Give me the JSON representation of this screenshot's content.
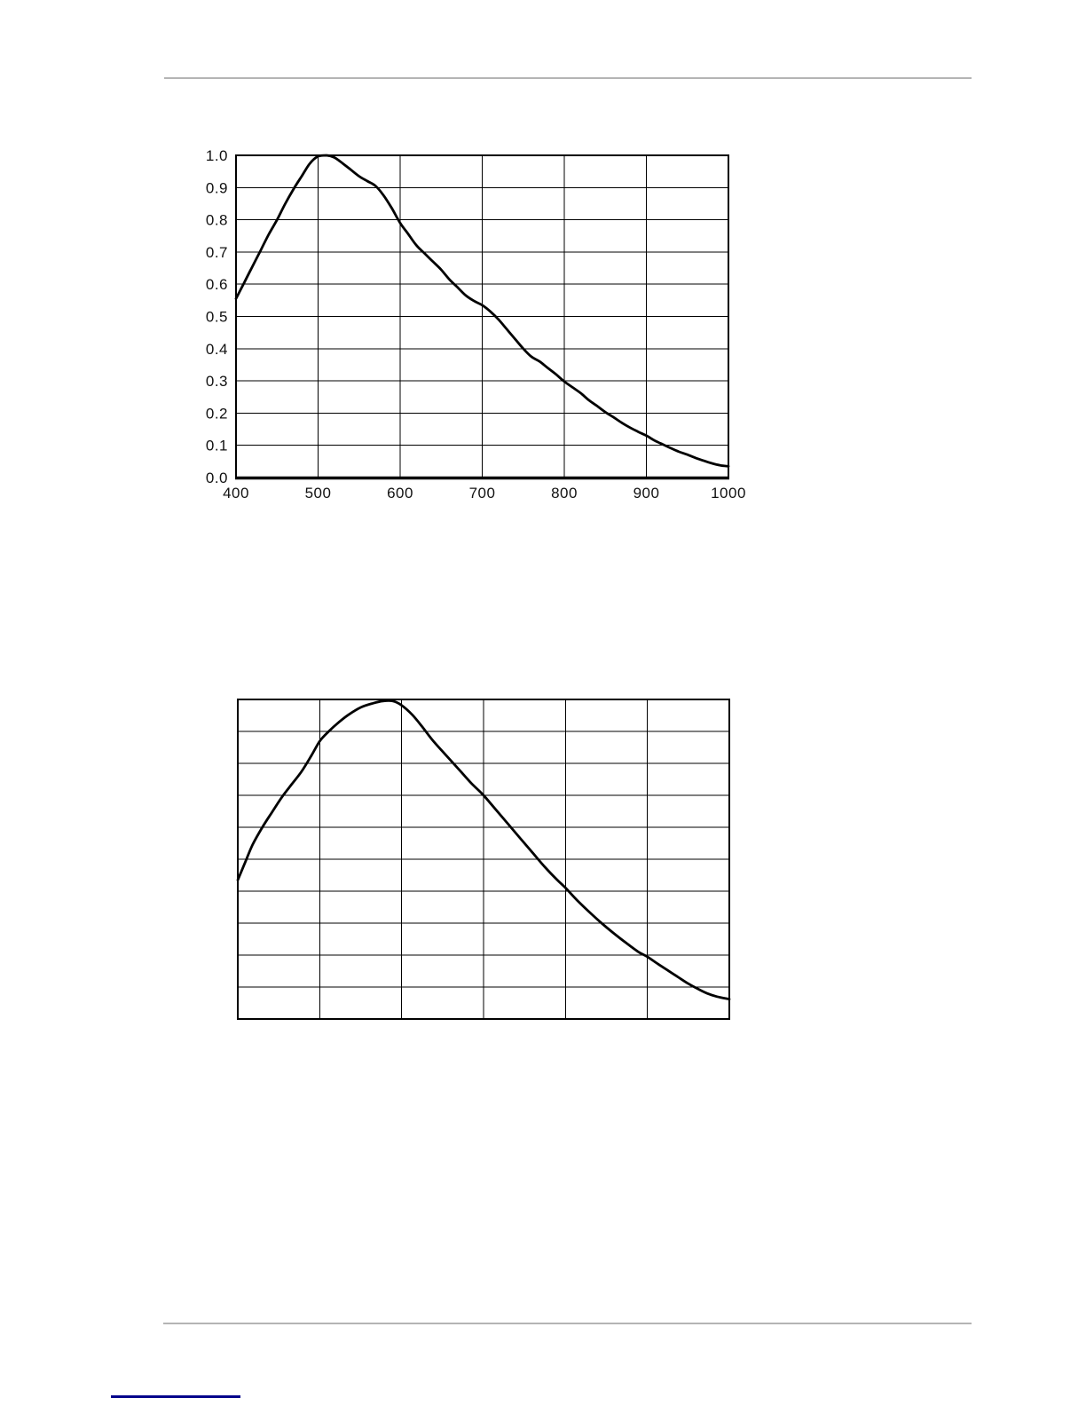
{
  "page": {
    "background": "#ffffff",
    "header_rule_color": "#b4b4b4",
    "footer_rule_color": "#b4b4b4",
    "link_line_color": "#00008b",
    "line_color": "#000000"
  },
  "chart_data": [
    {
      "type": "line",
      "title": "",
      "xlabel": "",
      "ylabel": "",
      "xlim": [
        400,
        1000
      ],
      "ylim": [
        0.0,
        1.0
      ],
      "x_ticks": [
        400,
        500,
        600,
        700,
        800,
        900,
        1000
      ],
      "x_tick_labels": [
        "400",
        "500",
        "600",
        "700",
        "800",
        "900",
        "1000"
      ],
      "y_ticks": [
        1.0,
        0.9,
        0.8,
        0.7,
        0.6,
        0.5,
        0.4,
        0.3,
        0.2,
        0.1,
        0.0
      ],
      "y_tick_labels": [
        "1.0",
        "0.9",
        "0.8",
        "0.7",
        "0.6",
        "0.5",
        "0.4",
        "0.3",
        "0.2",
        "0.1",
        "0.0"
      ],
      "grid": "on",
      "legend": "none",
      "labels_visible": true,
      "thick_baseline": true,
      "series": [
        {
          "name": "relative-spectral-response",
          "x": [
            400,
            410,
            420,
            430,
            440,
            450,
            460,
            470,
            480,
            490,
            500,
            510,
            520,
            530,
            540,
            550,
            560,
            570,
            580,
            590,
            600,
            610,
            620,
            630,
            640,
            650,
            660,
            670,
            680,
            690,
            700,
            710,
            720,
            730,
            740,
            750,
            760,
            770,
            780,
            790,
            800,
            810,
            820,
            830,
            840,
            850,
            860,
            870,
            880,
            890,
            900,
            910,
            920,
            930,
            940,
            950,
            960,
            970,
            980,
            990,
            1000
          ],
          "y": [
            0.555,
            0.605,
            0.655,
            0.705,
            0.755,
            0.8,
            0.85,
            0.895,
            0.935,
            0.975,
            0.997,
            1.0,
            0.993,
            0.975,
            0.955,
            0.935,
            0.92,
            0.905,
            0.875,
            0.835,
            0.79,
            0.755,
            0.72,
            0.695,
            0.67,
            0.645,
            0.615,
            0.59,
            0.565,
            0.548,
            0.535,
            0.515,
            0.49,
            0.46,
            0.43,
            0.4,
            0.375,
            0.36,
            0.34,
            0.32,
            0.298,
            0.28,
            0.262,
            0.24,
            0.222,
            0.203,
            0.187,
            0.17,
            0.155,
            0.142,
            0.13,
            0.115,
            0.103,
            0.091,
            0.08,
            0.071,
            0.061,
            0.052,
            0.044,
            0.038,
            0.035
          ]
        }
      ]
    },
    {
      "type": "line",
      "title": "",
      "xlabel": "",
      "ylabel": "",
      "xlim": [
        0,
        1
      ],
      "ylim": [
        0,
        1
      ],
      "grid": "on",
      "grid_cols": 6,
      "grid_rows": 10,
      "legend": "none",
      "labels_visible": false,
      "thick_baseline": false,
      "x_tick_labels": [],
      "y_tick_labels": [],
      "series": [
        {
          "name": "relative-spectral-response-unlabeled",
          "x": [
            0,
            0.015,
            0.03,
            0.05,
            0.07,
            0.09,
            0.11,
            0.13,
            0.15,
            0.167,
            0.185,
            0.205,
            0.225,
            0.25,
            0.275,
            0.295,
            0.315,
            0.333,
            0.355,
            0.375,
            0.395,
            0.415,
            0.435,
            0.455,
            0.475,
            0.5,
            0.525,
            0.55,
            0.575,
            0.6,
            0.625,
            0.65,
            0.667,
            0.69,
            0.715,
            0.74,
            0.765,
            0.79,
            0.815,
            0.833,
            0.855,
            0.875,
            0.895,
            0.915,
            0.935,
            0.955,
            0.975,
            1.0
          ],
          "y": [
            0.435,
            0.49,
            0.545,
            0.6,
            0.648,
            0.695,
            0.735,
            0.775,
            0.825,
            0.87,
            0.9,
            0.928,
            0.952,
            0.975,
            0.988,
            0.995,
            0.995,
            0.982,
            0.952,
            0.915,
            0.875,
            0.84,
            0.806,
            0.772,
            0.738,
            0.7,
            0.655,
            0.61,
            0.565,
            0.52,
            0.475,
            0.435,
            0.41,
            0.372,
            0.335,
            0.3,
            0.268,
            0.238,
            0.21,
            0.195,
            0.172,
            0.152,
            0.132,
            0.112,
            0.095,
            0.08,
            0.07,
            0.062
          ]
        }
      ]
    }
  ]
}
